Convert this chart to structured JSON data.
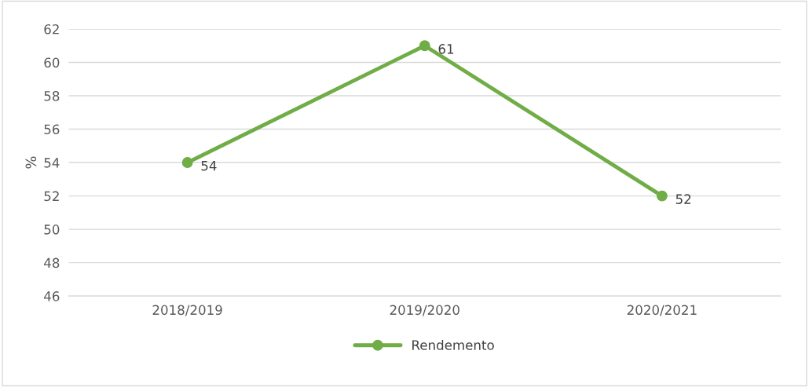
{
  "chart_data": {
    "type": "line",
    "ylabel": "%",
    "categories": [
      "2018/2019",
      "2019/2020",
      "2020/2021"
    ],
    "series": [
      {
        "name": "Rendemento",
        "color": "#70ad47",
        "values": [
          54,
          61,
          52
        ]
      }
    ],
    "ylim": [
      46,
      62
    ],
    "yticks": [
      46,
      48,
      50,
      52,
      54,
      56,
      58,
      60,
      62
    ],
    "grid": "y",
    "legend": "bottom",
    "marker": "circle",
    "line_style": "solid",
    "data_labels": true
  }
}
